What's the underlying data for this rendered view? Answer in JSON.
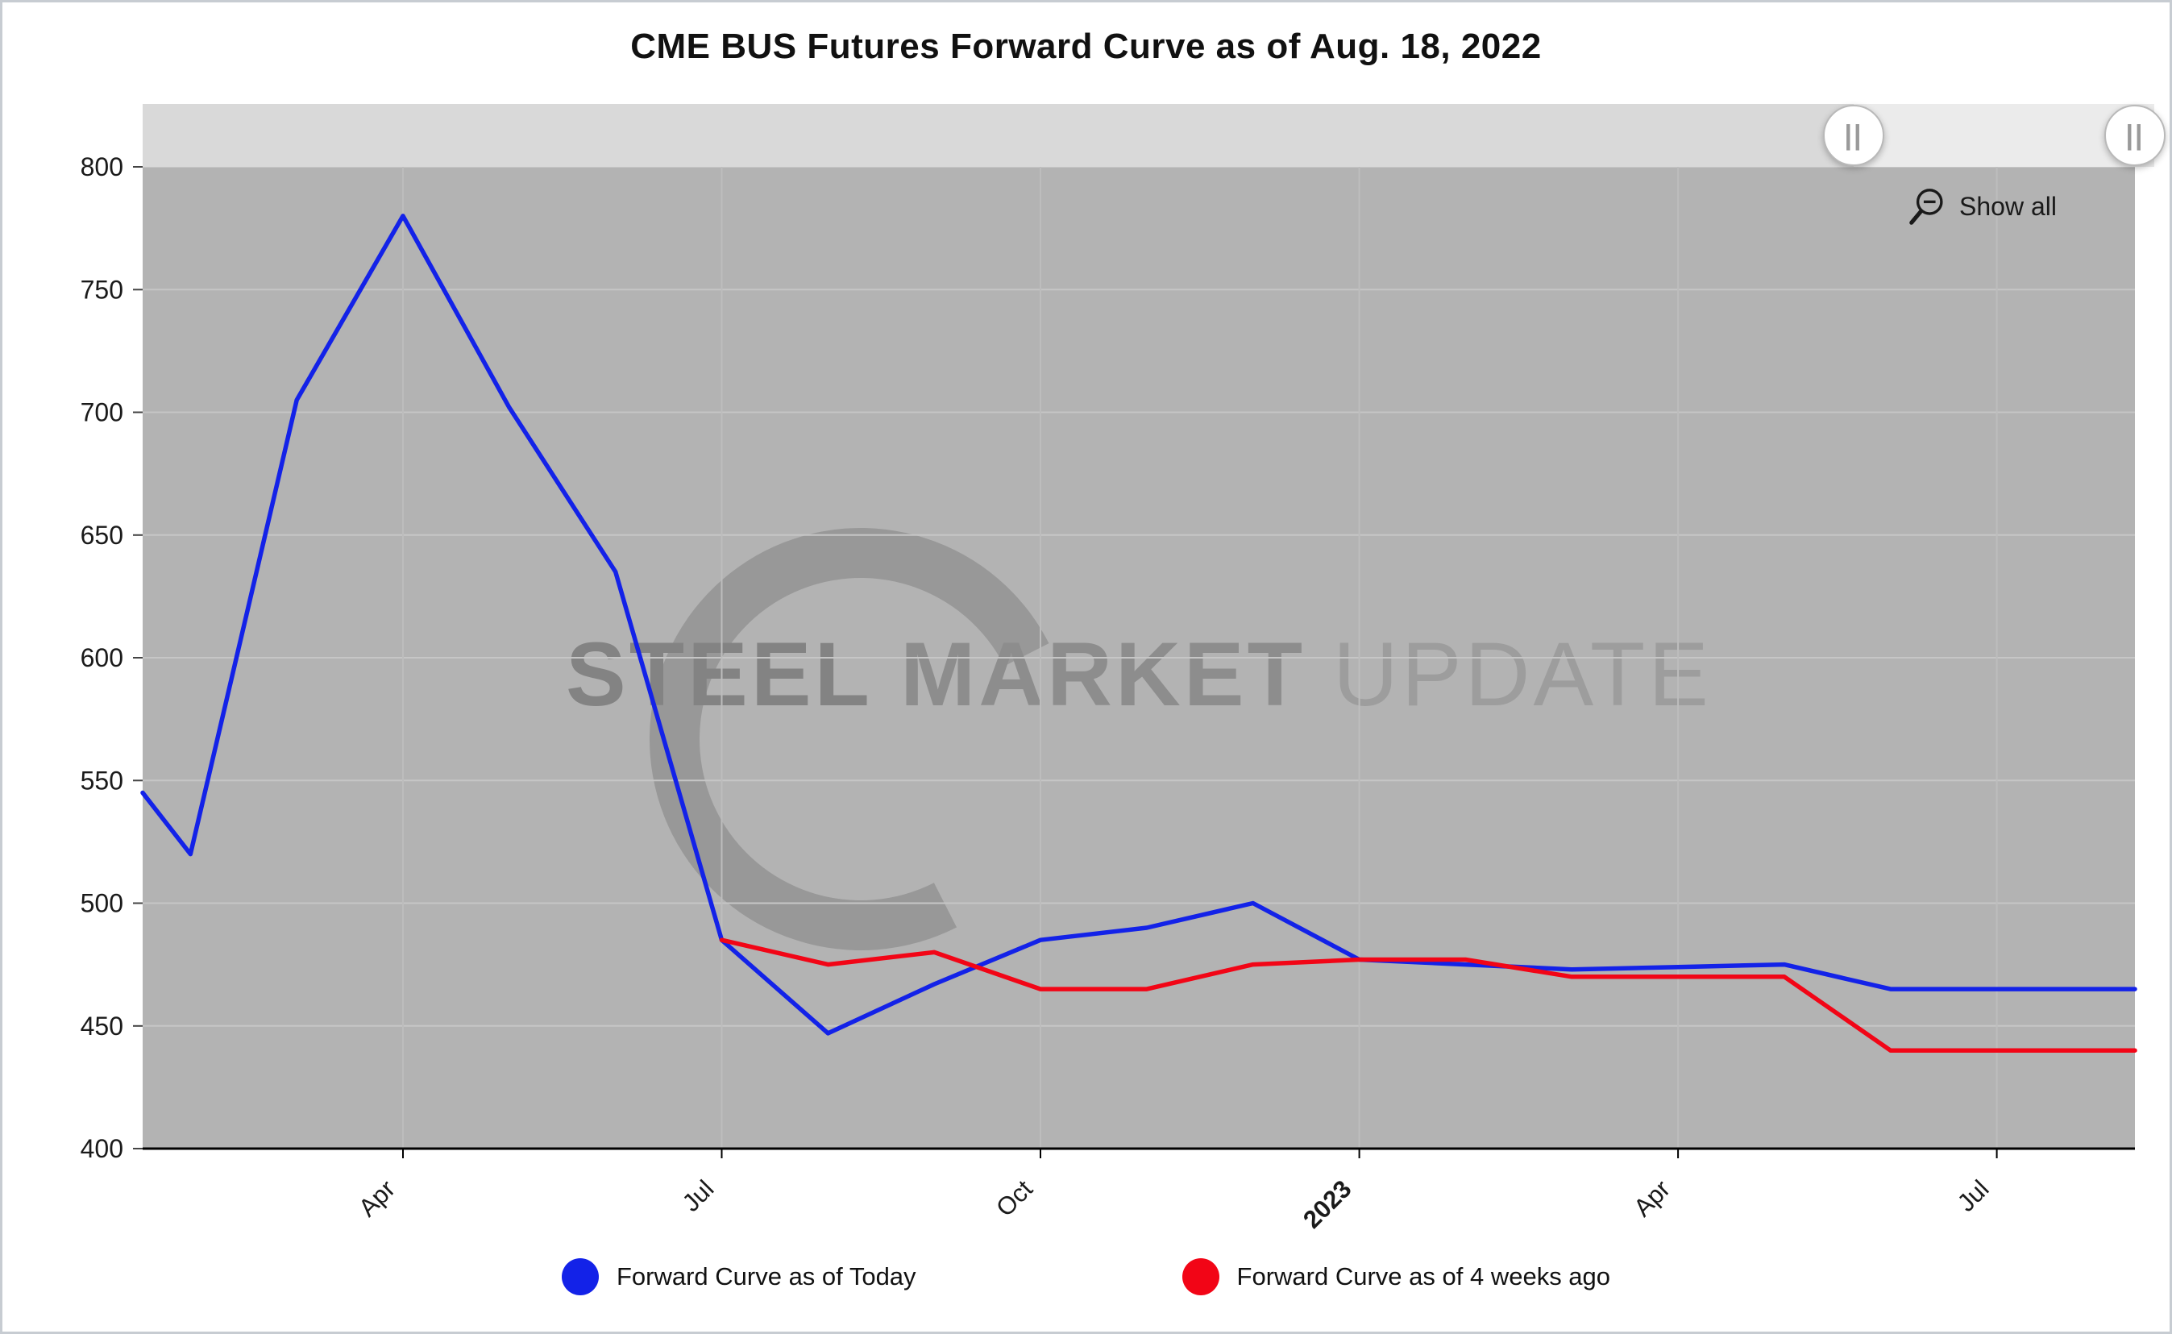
{
  "title": "CME BUS Futures Forward Curve as of Aug. 18, 2022",
  "controls": {
    "show_all_label": "Show all",
    "navigator_handle_glyph": "||"
  },
  "watermark": {
    "words": [
      "STEEL",
      "MARKET",
      "UPDATE"
    ]
  },
  "legend": {
    "items": [
      {
        "label": "Forward Curve as of Today",
        "color": "#1322e8"
      },
      {
        "label": "Forward Curve as of 4 weeks ago",
        "color": "#f20516"
      }
    ]
  },
  "colors": {
    "plot_bg": "#b3b3b3",
    "h_grid": "#c6c6c6",
    "v_grid": "#bdbdbd",
    "axis": "#000000",
    "tick_label": "#1a1a1a",
    "navigator_track": "#d9d9d9",
    "navigator_range": "#ebebeb"
  },
  "chart_data": {
    "type": "line",
    "title": "CME BUS Futures Forward Curve as of Aug. 18, 2022",
    "xlabel": "",
    "ylabel": "",
    "ylim": [
      400,
      800
    ],
    "xlim": [
      0.55,
      19.3
    ],
    "x_unit": "months since Jan 2022 (3 = Apr 2022, 12 = Jan 2023, 19 = Aug 2023)",
    "grid": true,
    "legend_position": "bottom",
    "y_ticks": [
      400,
      450,
      500,
      550,
      600,
      650,
      700,
      750,
      800
    ],
    "x_ticks": [
      {
        "x": 3,
        "label": "Apr",
        "bold": false
      },
      {
        "x": 6,
        "label": "Jul",
        "bold": false
      },
      {
        "x": 9,
        "label": "Oct",
        "bold": false
      },
      {
        "x": 12,
        "label": "2023",
        "bold": true
      },
      {
        "x": 15,
        "label": "Apr",
        "bold": false
      },
      {
        "x": 18,
        "label": "Jul",
        "bold": false
      }
    ],
    "series": [
      {
        "name": "Forward Curve as of Today",
        "color": "#1322e8",
        "x": [
          0.55,
          1,
          2,
          3,
          4,
          5,
          6,
          7,
          8,
          9,
          10,
          11,
          12,
          13,
          14,
          15,
          16,
          17,
          18,
          19.3
        ],
        "values": [
          545,
          520,
          705,
          780,
          702,
          635,
          485,
          447,
          467,
          485,
          490,
          500,
          477,
          475,
          473,
          474,
          475,
          465,
          465,
          465
        ]
      },
      {
        "name": "Forward Curve as of 4 weeks ago",
        "color": "#f20516",
        "x": [
          6,
          7,
          8,
          9,
          10,
          11,
          12,
          13,
          14,
          15,
          16,
          17,
          18,
          19.3
        ],
        "values": [
          485,
          475,
          480,
          465,
          465,
          475,
          477,
          477,
          470,
          470,
          470,
          440,
          440,
          440
        ]
      }
    ]
  }
}
